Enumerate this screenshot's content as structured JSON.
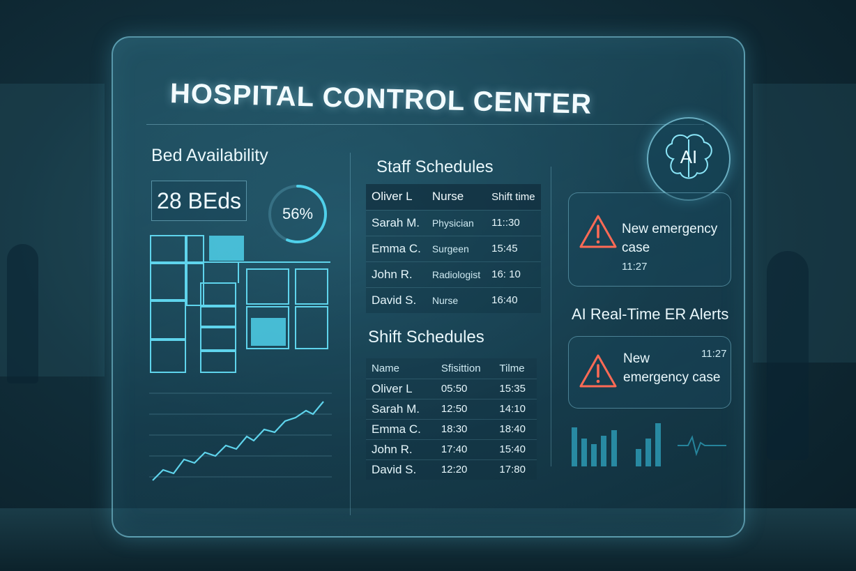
{
  "header": {
    "title": "HOSPITAL CONTROL CENTER"
  },
  "bed_availability": {
    "title": "Bed Availability",
    "beds_label": "28 BEds",
    "occupancy_label": "56%",
    "occupancy_fraction": 0.56
  },
  "staff_schedules": {
    "title": "Staff Schedules",
    "header": [
      "Oliver L",
      "Nurse",
      "Shift time"
    ],
    "rows": [
      [
        "Sarah M.",
        "Physician",
        "11::30"
      ],
      [
        "Emma C.",
        "Surgeen",
        "15:45"
      ],
      [
        "John R.",
        "Radiologist",
        "16: 10"
      ],
      [
        "David S.",
        "Nurse",
        "16:40"
      ]
    ]
  },
  "shift_schedules": {
    "title": "Shift Schedules",
    "header": [
      "Name",
      "Sfisittion",
      "Tilme"
    ],
    "rows": [
      [
        "Oliver L",
        "05:50",
        "15:35"
      ],
      [
        "Sarah M.",
        "12:50",
        "14:10"
      ],
      [
        "Emma C.",
        "18:30",
        "18:40"
      ],
      [
        "John R.",
        "17:40",
        "15:40"
      ],
      [
        "David S.",
        "12:20",
        "17:80"
      ]
    ]
  },
  "ai": {
    "badge_text": "AI",
    "alerts_title": "AI Real-Time ER Alerts",
    "alerts": [
      {
        "line1": "New emergency",
        "line2": "case",
        "time": "11:27"
      },
      {
        "line1": "New",
        "line2": "emergency case",
        "time": "11:27"
      }
    ]
  },
  "colors": {
    "accent": "#4fd0ea",
    "alert": "#ff6a55",
    "panel_border": "#8cdcf0"
  }
}
